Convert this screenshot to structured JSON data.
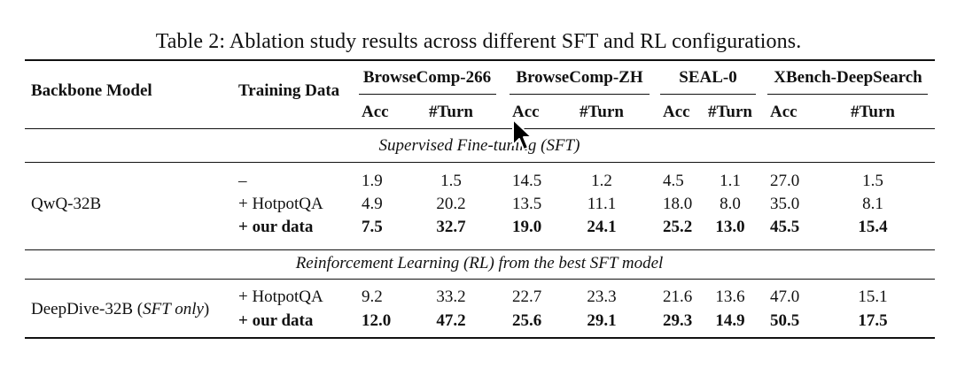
{
  "caption": "Table 2: Ablation study results across different SFT and RL configurations.",
  "header": {
    "backbone": "Backbone Model",
    "training": "Training Data",
    "groups": [
      "BrowseComp-266",
      "BrowseComp-ZH",
      "SEAL-0",
      "XBench-DeepSearch"
    ],
    "sub": [
      "Acc",
      "#Turn",
      "Acc",
      "#Turn",
      "Acc",
      "#Turn",
      "Acc",
      "#Turn"
    ]
  },
  "sections": {
    "sft": "Supervised Fine-tuning (SFT)",
    "rl": "Reinforcement Learning (RL) from the best SFT model"
  },
  "sft_block": {
    "model": "QwQ-32B",
    "rows": [
      {
        "data": "–",
        "bold": false,
        "values": [
          "1.9",
          "1.5",
          "14.5",
          "1.2",
          "4.5",
          "1.1",
          "27.0",
          "1.5"
        ]
      },
      {
        "data": "+ HotpotQA",
        "bold": false,
        "values": [
          "4.9",
          "20.2",
          "13.5",
          "11.1",
          "18.0",
          "8.0",
          "35.0",
          "8.1"
        ]
      },
      {
        "data": "+ our data",
        "bold": true,
        "values": [
          "7.5",
          "32.7",
          "19.0",
          "24.1",
          "25.2",
          "13.0",
          "45.5",
          "15.4"
        ]
      }
    ]
  },
  "rl_block": {
    "model_main": "DeepDive-32B (",
    "model_italic": "SFT only",
    "model_close": ")",
    "rows": [
      {
        "data": "+ HotpotQA",
        "bold": false,
        "values": [
          "9.2",
          "33.2",
          "22.7",
          "23.3",
          "21.6",
          "13.6",
          "47.0",
          "15.1"
        ]
      },
      {
        "data": "+ our data",
        "bold": true,
        "values": [
          "12.0",
          "47.2",
          "25.6",
          "29.1",
          "29.3",
          "14.9",
          "50.5",
          "17.5"
        ]
      }
    ]
  }
}
